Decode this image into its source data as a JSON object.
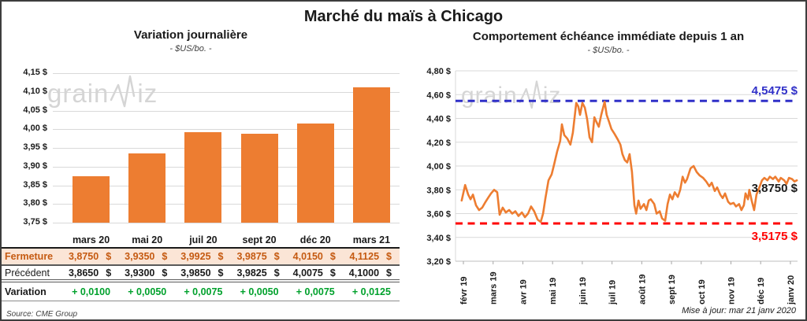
{
  "main_title": "Marché du maïs à Chicago",
  "watermark": {
    "pre": "grain",
    "post": "iz"
  },
  "source_note": "Source: CME Group",
  "updated_note": "Mise à jour: mar 21 janv 2020",
  "colors": {
    "accent_orange": "#ED7D31",
    "fermeture_bg": "#FBE5D6",
    "fermeture_text": "#C55A11",
    "variation_green": "#00A12C",
    "high_blue": "#3030C8",
    "low_red": "#FF0000",
    "grid": "#D9D9D9",
    "watermark": "#D5D5D5"
  },
  "table": {
    "header": [
      "",
      "mars 20",
      "mai 20",
      "juil 20",
      "sept 20",
      "déc 20",
      "mars 21"
    ],
    "rows": [
      {
        "label": "Fermeture",
        "style": "fermeture",
        "unit": "$",
        "values": [
          "3,8750",
          "3,9350",
          "3,9925",
          "3,9875",
          "4,0150",
          "4,1125"
        ]
      },
      {
        "label": "Précédent",
        "style": "precedent",
        "unit": "$",
        "values": [
          "3,8650",
          "3,9300",
          "3,9850",
          "3,9825",
          "4,0075",
          "4,1000"
        ]
      },
      {
        "label": "Variation",
        "style": "variation",
        "unit": "",
        "values": [
          "+ 0,0100",
          "+ 0,0050",
          "+ 0,0075",
          "+ 0,0050",
          "+ 0,0075",
          "+ 0,0125"
        ]
      }
    ]
  },
  "chart_data": [
    {
      "type": "bar",
      "title": "Variation journalière",
      "subtitle": "- $US/bo. -",
      "categories": [
        "mars 20",
        "mai 20",
        "juil 20",
        "sept 20",
        "déc 20",
        "mars 21"
      ],
      "values": [
        3.875,
        3.935,
        3.9925,
        3.9875,
        4.015,
        4.1125
      ],
      "ylim": [
        3.75,
        4.15
      ],
      "y_tick_step": 0.05,
      "y_tick_labels": [
        "3,75 $",
        "3,80 $",
        "3,85 $",
        "3,90 $",
        "3,95 $",
        "4,00 $",
        "4,05 $",
        "4,10 $",
        "4,15 $"
      ],
      "grid": true
    },
    {
      "type": "line",
      "title": "Comportement échéance immédiate depuis 1 an",
      "subtitle": "- $US/bo. -",
      "x_tick_labels": [
        "févr 19",
        "mars 19",
        "avr 19",
        "mai 19",
        "juin 19",
        "juil 19",
        "août 19",
        "sept 19",
        "oct 19",
        "nov 19",
        "déc 19",
        "janv 20"
      ],
      "ylim": [
        3.2,
        4.8
      ],
      "y_tick_step": 0.2,
      "y_tick_labels": [
        "3,20 $",
        "3,40 $",
        "3,60 $",
        "3,80 $",
        "4,00 $",
        "4,20 $",
        "4,40 $",
        "4,60 $",
        "4,80 $"
      ],
      "grid": true,
      "annotations": {
        "high": {
          "value": 4.5475,
          "label": "4,5475 $",
          "style": "dashed"
        },
        "low": {
          "value": 3.5175,
          "label": "3,5175 $",
          "style": "dashed"
        },
        "last": {
          "value": 3.875,
          "label": "3,8750 $"
        }
      },
      "points": [
        [
          0.018,
          3.71
        ],
        [
          0.028,
          3.84
        ],
        [
          0.037,
          3.76
        ],
        [
          0.044,
          3.72
        ],
        [
          0.051,
          3.76
        ],
        [
          0.06,
          3.67
        ],
        [
          0.069,
          3.63
        ],
        [
          0.078,
          3.65
        ],
        [
          0.088,
          3.7
        ],
        [
          0.097,
          3.74
        ],
        [
          0.104,
          3.77
        ],
        [
          0.113,
          3.8
        ],
        [
          0.122,
          3.78
        ],
        [
          0.129,
          3.59
        ],
        [
          0.138,
          3.65
        ],
        [
          0.147,
          3.61
        ],
        [
          0.157,
          3.63
        ],
        [
          0.166,
          3.6
        ],
        [
          0.175,
          3.62
        ],
        [
          0.184,
          3.58
        ],
        [
          0.194,
          3.61
        ],
        [
          0.203,
          3.57
        ],
        [
          0.212,
          3.6
        ],
        [
          0.221,
          3.66
        ],
        [
          0.23,
          3.62
        ],
        [
          0.24,
          3.55
        ],
        [
          0.249,
          3.53
        ],
        [
          0.256,
          3.6
        ],
        [
          0.263,
          3.73
        ],
        [
          0.272,
          3.88
        ],
        [
          0.281,
          3.93
        ],
        [
          0.288,
          4.01
        ],
        [
          0.297,
          4.12
        ],
        [
          0.306,
          4.21
        ],
        [
          0.311,
          4.35
        ],
        [
          0.318,
          4.26
        ],
        [
          0.327,
          4.23
        ],
        [
          0.336,
          4.18
        ],
        [
          0.343,
          4.28
        ],
        [
          0.353,
          4.53
        ],
        [
          0.359,
          4.5
        ],
        [
          0.364,
          4.43
        ],
        [
          0.371,
          4.53
        ],
        [
          0.378,
          4.49
        ],
        [
          0.385,
          4.39
        ],
        [
          0.392,
          4.24
        ],
        [
          0.399,
          4.2
        ],
        [
          0.406,
          4.41
        ],
        [
          0.412,
          4.37
        ],
        [
          0.419,
          4.33
        ],
        [
          0.426,
          4.43
        ],
        [
          0.436,
          4.54
        ],
        [
          0.442,
          4.43
        ],
        [
          0.449,
          4.37
        ],
        [
          0.456,
          4.31
        ],
        [
          0.465,
          4.27
        ],
        [
          0.475,
          4.22
        ],
        [
          0.482,
          4.18
        ],
        [
          0.488,
          4.1
        ],
        [
          0.495,
          4.05
        ],
        [
          0.502,
          4.03
        ],
        [
          0.509,
          4.1
        ],
        [
          0.516,
          3.95
        ],
        [
          0.523,
          3.67
        ],
        [
          0.528,
          3.6
        ],
        [
          0.535,
          3.71
        ],
        [
          0.541,
          3.64
        ],
        [
          0.551,
          3.68
        ],
        [
          0.558,
          3.63
        ],
        [
          0.565,
          3.71
        ],
        [
          0.571,
          3.72
        ],
        [
          0.581,
          3.68
        ],
        [
          0.588,
          3.6
        ],
        [
          0.597,
          3.62
        ],
        [
          0.604,
          3.56
        ],
        [
          0.613,
          3.54
        ],
        [
          0.62,
          3.68
        ],
        [
          0.627,
          3.76
        ],
        [
          0.634,
          3.72
        ],
        [
          0.641,
          3.78
        ],
        [
          0.65,
          3.74
        ],
        [
          0.657,
          3.8
        ],
        [
          0.664,
          3.91
        ],
        [
          0.671,
          3.86
        ],
        [
          0.677,
          3.89
        ],
        [
          0.687,
          3.98
        ],
        [
          0.696,
          4.0
        ],
        [
          0.705,
          3.95
        ],
        [
          0.714,
          3.92
        ],
        [
          0.724,
          3.9
        ],
        [
          0.733,
          3.87
        ],
        [
          0.742,
          3.83
        ],
        [
          0.749,
          3.86
        ],
        [
          0.758,
          3.79
        ],
        [
          0.765,
          3.82
        ],
        [
          0.774,
          3.76
        ],
        [
          0.781,
          3.73
        ],
        [
          0.788,
          3.77
        ],
        [
          0.797,
          3.7
        ],
        [
          0.804,
          3.68
        ],
        [
          0.813,
          3.69
        ],
        [
          0.82,
          3.66
        ],
        [
          0.829,
          3.68
        ],
        [
          0.836,
          3.63
        ],
        [
          0.843,
          3.67
        ],
        [
          0.848,
          3.77
        ],
        [
          0.855,
          3.72
        ],
        [
          0.859,
          3.8
        ],
        [
          0.866,
          3.71
        ],
        [
          0.873,
          3.63
        ],
        [
          0.88,
          3.76
        ],
        [
          0.887,
          3.81
        ],
        [
          0.896,
          3.88
        ],
        [
          0.903,
          3.9
        ],
        [
          0.912,
          3.88
        ],
        [
          0.919,
          3.91
        ],
        [
          0.928,
          3.89
        ],
        [
          0.935,
          3.91
        ],
        [
          0.945,
          3.87
        ],
        [
          0.951,
          3.9
        ],
        [
          0.961,
          3.88
        ],
        [
          0.968,
          3.85
        ],
        [
          0.975,
          3.9
        ],
        [
          0.984,
          3.89
        ],
        [
          0.991,
          3.87
        ],
        [
          0.998,
          3.88
        ]
      ]
    }
  ]
}
